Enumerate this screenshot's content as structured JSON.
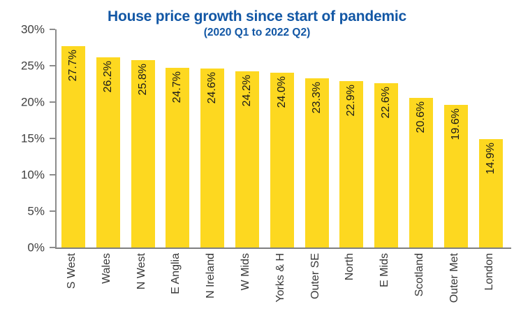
{
  "header": {
    "title": "House price growth since start of pandemic",
    "subtitle": "(2020 Q1 to 2022 Q2)"
  },
  "colors": {
    "title_blue": "#1257A5",
    "bar_yellow": "#FDD820",
    "axis_gray": "#8c8c8c",
    "tick_label_gray": "#404040",
    "bar_value_text": "#1a1a1a"
  },
  "chart_data": {
    "type": "bar",
    "title": "House price growth since start of pandemic",
    "subtitle": "(2020 Q1 to 2022 Q2)",
    "categories": [
      "S West",
      "Wales",
      "N West",
      "E Anglia",
      "N Ireland",
      "W Mids",
      "Yorks & H",
      "Outer SE",
      "North",
      "E Mids",
      "Scotland",
      "Outer Met",
      "London"
    ],
    "values": [
      27.7,
      26.2,
      25.8,
      24.7,
      24.6,
      24.2,
      24.0,
      23.3,
      22.9,
      22.6,
      20.6,
      19.6,
      14.9
    ],
    "value_labels": [
      "27.7%",
      "26.2%",
      "25.8%",
      "24.7%",
      "24.6%",
      "24.2%",
      "24.0%",
      "23.3%",
      "22.9%",
      "22.6%",
      "20.6%",
      "19.6%",
      "14.9%"
    ],
    "xlabel": "",
    "ylabel": "",
    "ylim": [
      0,
      30
    ],
    "yticks": [
      0,
      5,
      10,
      15,
      20,
      25,
      30
    ],
    "ytick_labels": [
      "0%",
      "5%",
      "10%",
      "15%",
      "20%",
      "25%",
      "30%"
    ],
    "grid": false,
    "legend": false,
    "bar_color": "#FDD820",
    "bar_label_rotation": -90,
    "x_label_rotation": -90
  }
}
